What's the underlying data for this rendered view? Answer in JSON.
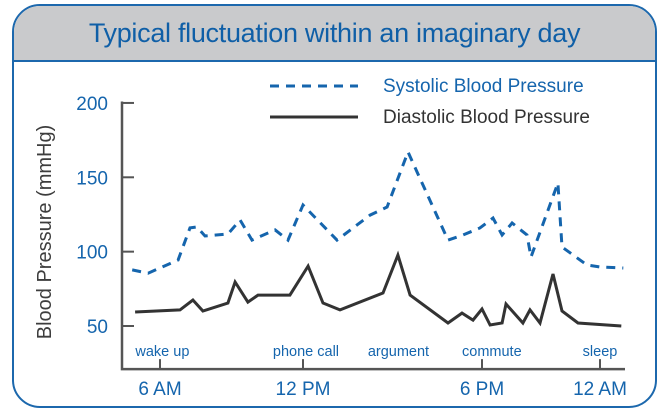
{
  "chart_data": {
    "type": "line",
    "title": "Typical fluctuation within an imaginary day",
    "xlabel": "",
    "ylabel": "Blood Pressure (mmHg)",
    "xlim_hours": [
      4.4,
      25.2
    ],
    "ylim": [
      21,
      201
    ],
    "x_ticks": [
      {
        "hour": 6,
        "label": "6 AM"
      },
      {
        "hour": 12,
        "label": "12 PM"
      },
      {
        "hour": 18,
        "label": "6 PM"
      },
      {
        "hour": 24,
        "label": "12 AM"
      }
    ],
    "y_ticks": [
      {
        "value": 50,
        "label": "50"
      },
      {
        "value": 100,
        "label": "100"
      },
      {
        "value": 150,
        "label": "150"
      },
      {
        "value": 200,
        "label": "200"
      }
    ],
    "grid": false,
    "legend_placement": "top-right",
    "annotations": [
      {
        "hour": 6.1,
        "label": "wake up"
      },
      {
        "hour": 12.1,
        "label": "phone call"
      },
      {
        "hour": 15.2,
        "label": "argument"
      },
      {
        "hour": 18.5,
        "label": "commute"
      },
      {
        "hour": 24.0,
        "label": "sleep"
      }
    ],
    "series": [
      {
        "name": "Systolic Blood Pressure",
        "style": "dashed",
        "color": "#1565ad",
        "points": [
          [
            4.83,
            87.7
          ],
          [
            5.5,
            85.5
          ],
          [
            6.76,
            94.4
          ],
          [
            7.26,
            116
          ],
          [
            7.55,
            116.6
          ],
          [
            7.89,
            110.5
          ],
          [
            8.85,
            111.9
          ],
          [
            9.36,
            121.3
          ],
          [
            9.86,
            107.8
          ],
          [
            10.83,
            114.6
          ],
          [
            11.37,
            107.8
          ],
          [
            12.0,
            131.4
          ],
          [
            13.14,
            107.8
          ],
          [
            14.25,
            124.6
          ],
          [
            14.82,
            130
          ],
          [
            15.52,
            167
          ],
          [
            16.86,
            107.8
          ],
          [
            17.36,
            111.2
          ],
          [
            17.93,
            115.9
          ],
          [
            18.56,
            122.6
          ],
          [
            19.02,
            111.2
          ],
          [
            19.53,
            119.3
          ],
          [
            20.29,
            111.2
          ],
          [
            20.49,
            96.4
          ],
          [
            21.86,
            146.2
          ],
          [
            22.07,
            103.1
          ],
          [
            23.34,
            91
          ],
          [
            24.0,
            89.7
          ],
          [
            25.12,
            89
          ]
        ]
      },
      {
        "name": "Diastolic Blood Pressure",
        "style": "solid",
        "color": "#333333",
        "points": [
          [
            4.95,
            59.4
          ],
          [
            6.84,
            60.8
          ],
          [
            7.38,
            67.5
          ],
          [
            7.8,
            60.1
          ],
          [
            8.85,
            65.5
          ],
          [
            9.15,
            79.6
          ],
          [
            9.69,
            66.1
          ],
          [
            10.11,
            70.8
          ],
          [
            11.45,
            70.8
          ],
          [
            12.17,
            90.3
          ],
          [
            12.67,
            65.5
          ],
          [
            13.24,
            60.8
          ],
          [
            14.68,
            72.2
          ],
          [
            15.18,
            97.7
          ],
          [
            15.59,
            70.8
          ],
          [
            16.86,
            52
          ],
          [
            17.33,
            58.7
          ],
          [
            17.7,
            54
          ],
          [
            18.0,
            61.4
          ],
          [
            18.41,
            50.7
          ],
          [
            19.02,
            52
          ],
          [
            19.22,
            64.8
          ],
          [
            20.08,
            52
          ],
          [
            20.44,
            60.8
          ],
          [
            20.95,
            52
          ],
          [
            21.61,
            85
          ],
          [
            22.07,
            60.1
          ],
          [
            22.88,
            52
          ],
          [
            25.02,
            50
          ]
        ]
      }
    ]
  },
  "colors": {
    "accent": "#1565ad",
    "header_bg": "#c9cacc",
    "diastolic": "#333333"
  }
}
